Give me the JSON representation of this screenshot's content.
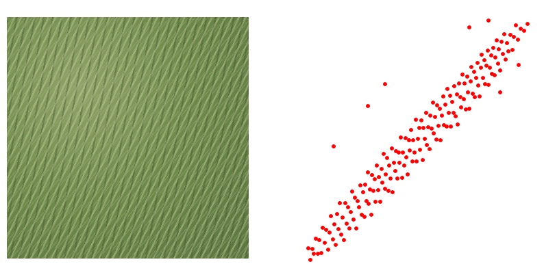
{
  "chart_data": {
    "type": "scatter",
    "color": "#ff0000",
    "marker": "circle",
    "xlim": [
      0,
      340
    ],
    "ylim": [
      0,
      370
    ],
    "grid": false,
    "tick_labels": false,
    "x": [
      10,
      13,
      16,
      18,
      21,
      24,
      26,
      29,
      31,
      34,
      36,
      39,
      41,
      43,
      46,
      48,
      50,
      52,
      54,
      56,
      58,
      60,
      62,
      64,
      66,
      68,
      70,
      72,
      74,
      76,
      78,
      80,
      82,
      84,
      86,
      88,
      90,
      92,
      93,
      95,
      97,
      98,
      100,
      102,
      103,
      105,
      107,
      108,
      110,
      112,
      113,
      115,
      117,
      118,
      120,
      122,
      123,
      125,
      127,
      128,
      130,
      132,
      133,
      135,
      137,
      138,
      140,
      142,
      143,
      145,
      147,
      148,
      150,
      152,
      153,
      155,
      157,
      158,
      160,
      162,
      163,
      165,
      167,
      168,
      170,
      172,
      173,
      175,
      177,
      178,
      180,
      182,
      183,
      185,
      187,
      188,
      190,
      192,
      193,
      195,
      197,
      198,
      200,
      202,
      203,
      205,
      207,
      208,
      210,
      212,
      213,
      215,
      217,
      218,
      220,
      222,
      223,
      225,
      227,
      228,
      230,
      232,
      233,
      235,
      237,
      238,
      240,
      242,
      243,
      245,
      247,
      248,
      250,
      252,
      253,
      255,
      257,
      258,
      260,
      262,
      263,
      265,
      267,
      268,
      270,
      272,
      273,
      275,
      277,
      278,
      280,
      282,
      283,
      285,
      287,
      288,
      290,
      292,
      294,
      296,
      298,
      300,
      302,
      305,
      308,
      310,
      313,
      316,
      320,
      325,
      330,
      47,
      97,
      122,
      273,
      245,
      317,
      290
    ],
    "values": [
      27,
      10,
      26,
      19,
      41,
      19,
      39,
      20,
      57,
      35,
      54,
      25,
      50,
      74,
      40,
      62,
      32,
      77,
      55,
      93,
      47,
      72,
      39,
      93,
      63,
      87,
      56,
      80,
      110,
      69,
      101,
      56,
      96,
      87,
      119,
      76,
      109,
      73,
      120,
      96,
      138,
      92,
      113,
      76,
      134,
      111,
      128,
      95,
      148,
      112,
      131,
      95,
      143,
      123,
      165,
      114,
      135,
      159,
      111,
      148,
      129,
      173,
      109,
      152,
      140,
      169,
      129,
      167,
      152,
      189,
      130,
      167,
      148,
      188,
      160,
      135,
      185,
      170,
      200,
      154,
      185,
      167,
      215,
      154,
      187,
      203,
      171,
      214,
      156,
      203,
      187,
      225,
      178,
      204,
      172,
      221,
      202,
      240,
      195,
      219,
      186,
      236,
      206,
      231,
      185,
      221,
      249,
      207,
      237,
      205,
      260,
      225,
      250,
      205,
      241,
      225,
      264,
      220,
      252,
      208,
      268,
      248,
      233,
      281,
      245,
      268,
      230,
      278,
      255,
      231,
      271,
      292,
      253,
      285,
      248,
      276,
      298,
      265,
      249,
      291,
      310,
      276,
      302,
      267,
      294,
      316,
      266,
      291,
      309,
      282,
      320,
      280,
      306,
      331,
      297,
      318,
      287,
      329,
      311,
      340,
      303,
      327,
      315,
      339,
      317,
      336,
      353,
      332,
      348,
      345,
      355,
      176,
      235,
      267,
      360,
      350,
      295,
      255
    ]
  }
}
